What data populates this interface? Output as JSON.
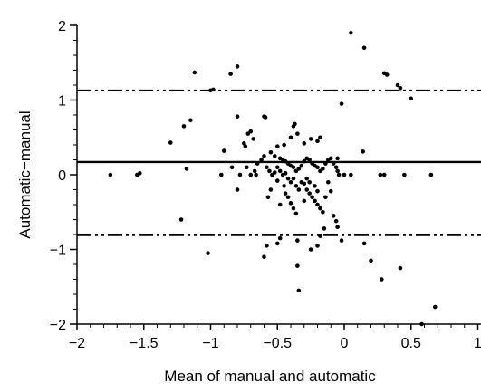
{
  "chart_data": {
    "type": "scatter",
    "title": "",
    "xlabel": "Mean of manual and automatic",
    "ylabel": "Automatic−manual",
    "xlim": [
      -2,
      1
    ],
    "ylim": [
      -2,
      2
    ],
    "x_ticks": [
      {
        "value": -2,
        "label": "−2"
      },
      {
        "value": -1.5,
        "label": "−1.5"
      },
      {
        "value": -1,
        "label": "−1"
      },
      {
        "value": -0.5,
        "label": "−0.5"
      },
      {
        "value": 0,
        "label": "0"
      },
      {
        "value": 0.5,
        "label": "0.5"
      },
      {
        "value": 1,
        "label": "1"
      }
    ],
    "y_ticks": [
      {
        "value": -2,
        "label": "−2"
      },
      {
        "value": -1,
        "label": "−1"
      },
      {
        "value": 0,
        "label": "0"
      },
      {
        "value": 1,
        "label": "1"
      },
      {
        "value": 2,
        "label": "2"
      }
    ],
    "grid": false,
    "reference_lines": [
      {
        "y": 0.17,
        "style": "solid"
      },
      {
        "y": 1.13,
        "style": "dash-dot-dot"
      },
      {
        "y": -0.81,
        "style": "dash-dot-dot"
      }
    ],
    "points": [
      [
        0.05,
        1.9
      ],
      [
        0.15,
        1.7
      ],
      [
        0.3,
        1.36
      ],
      [
        0.32,
        1.34
      ],
      [
        0.4,
        1.2
      ],
      [
        0.42,
        1.16
      ],
      [
        0.5,
        1.02
      ],
      [
        -1.12,
        1.37
      ],
      [
        -0.8,
        1.45
      ],
      [
        -0.85,
        1.35
      ],
      [
        -1.0,
        1.13
      ],
      [
        -0.98,
        1.14
      ],
      [
        -1.15,
        0.73
      ],
      [
        -1.2,
        0.65
      ],
      [
        -1.3,
        0.43
      ],
      [
        -0.8,
        0.78
      ],
      [
        -0.6,
        0.78
      ],
      [
        -0.59,
        0.77
      ],
      [
        -0.02,
        0.95
      ],
      [
        -0.37,
        0.68
      ],
      [
        -0.38,
        0.65
      ],
      [
        -0.35,
        0.55
      ],
      [
        -0.4,
        0.5
      ],
      [
        -0.7,
        0.58
      ],
      [
        -0.72,
        0.55
      ],
      [
        -0.68,
        0.48
      ],
      [
        -0.75,
        0.42
      ],
      [
        -0.74,
        0.38
      ],
      [
        -0.5,
        0.38
      ],
      [
        -0.45,
        0.4
      ],
      [
        -0.3,
        0.42
      ],
      [
        -0.25,
        0.48
      ],
      [
        -0.2,
        0.45
      ],
      [
        -0.18,
        0.5
      ],
      [
        0.14,
        0.31
      ],
      [
        -0.05,
        0.22
      ],
      [
        -0.55,
        0.3
      ],
      [
        -0.52,
        0.25
      ],
      [
        -0.48,
        0.22
      ],
      [
        -0.46,
        0.2
      ],
      [
        -0.44,
        0.18
      ],
      [
        -0.42,
        0.15
      ],
      [
        -0.4,
        0.12
      ],
      [
        -0.38,
        0.1
      ],
      [
        -0.36,
        0.05
      ],
      [
        -0.34,
        0.08
      ],
      [
        -0.32,
        0.12
      ],
      [
        -0.3,
        0.18
      ],
      [
        -0.28,
        0.22
      ],
      [
        -0.26,
        0.2
      ],
      [
        -0.24,
        0.15
      ],
      [
        -0.22,
        0.12
      ],
      [
        -0.2,
        0.1
      ],
      [
        -0.18,
        0.05
      ],
      [
        -0.16,
        0.08
      ],
      [
        -0.14,
        0.15
      ],
      [
        -0.12,
        0.2
      ],
      [
        -0.1,
        0.22
      ],
      [
        -0.08,
        0.15
      ],
      [
        -0.06,
        0.1
      ],
      [
        -0.05,
        0.05
      ],
      [
        -0.04,
        0.0
      ],
      [
        -0.5,
        0.1
      ],
      [
        -0.48,
        0.05
      ],
      [
        -0.46,
        0.0
      ],
      [
        -0.44,
        0.02
      ],
      [
        -0.6,
        0.25
      ],
      [
        -0.62,
        0.2
      ],
      [
        -0.65,
        0.15
      ],
      [
        -0.67,
        0.05
      ],
      [
        -0.7,
        0.0
      ],
      [
        -0.73,
        0.1
      ],
      [
        -0.58,
        0.1
      ],
      [
        -0.56,
        0.05
      ],
      [
        -0.54,
        0.0
      ],
      [
        -0.52,
        0.03
      ],
      [
        -0.42,
        -0.05
      ],
      [
        -0.4,
        -0.1
      ],
      [
        -0.38,
        -0.05
      ],
      [
        -0.36,
        -0.15
      ],
      [
        -0.34,
        -0.2
      ],
      [
        -0.32,
        -0.1
      ],
      [
        -0.3,
        -0.12
      ],
      [
        -0.28,
        -0.2
      ],
      [
        -0.26,
        -0.25
      ],
      [
        -0.24,
        -0.3
      ],
      [
        -0.22,
        -0.35
      ],
      [
        -0.2,
        -0.4
      ],
      [
        -0.18,
        -0.45
      ],
      [
        -0.16,
        -0.5
      ],
      [
        -0.45,
        -0.15
      ],
      [
        -0.44,
        -0.25
      ],
      [
        -0.42,
        -0.3
      ],
      [
        -0.4,
        -0.38
      ],
      [
        -0.38,
        -0.45
      ],
      [
        -0.5,
        -0.08
      ],
      [
        -0.55,
        -0.2
      ],
      [
        -0.57,
        -0.3
      ],
      [
        -0.48,
        -0.4
      ],
      [
        -0.36,
        -0.52
      ],
      [
        -0.3,
        -0.35
      ],
      [
        -0.12,
        -0.1
      ],
      [
        -0.1,
        -0.22
      ],
      [
        -0.08,
        -0.55
      ],
      [
        -0.06,
        -0.62
      ],
      [
        -0.05,
        -0.7
      ],
      [
        -0.28,
        -0.05
      ],
      [
        -0.26,
        -0.1
      ],
      [
        -0.22,
        -0.15
      ],
      [
        -0.2,
        -0.22
      ],
      [
        -0.14,
        -0.3
      ],
      [
        -0.48,
        -0.85
      ],
      [
        -0.5,
        -0.92
      ],
      [
        -0.35,
        -0.88
      ],
      [
        -0.58,
        -0.95
      ],
      [
        -0.6,
        -1.1
      ],
      [
        -0.35,
        -1.22
      ],
      [
        -0.34,
        -1.55
      ],
      [
        -0.25,
        -1.0
      ],
      [
        -0.2,
        -0.95
      ],
      [
        -0.02,
        -0.88
      ],
      [
        0.15,
        -0.92
      ],
      [
        0.2,
        -1.15
      ],
      [
        0.28,
        -1.4
      ],
      [
        0.42,
        -1.25
      ],
      [
        0.58,
        -2.0
      ],
      [
        0.68,
        -1.77
      ],
      [
        -1.22,
        -0.6
      ],
      [
        -1.02,
        -1.05
      ],
      [
        -0.9,
        0.32
      ],
      [
        -0.8,
        -0.2
      ],
      [
        -0.84,
        0.1
      ],
      [
        -1.18,
        0.08
      ],
      [
        -0.15,
        -0.72
      ],
      [
        -0.18,
        -0.82
      ],
      [
        -1.75,
        0.0
      ],
      [
        -1.55,
        0.0
      ],
      [
        -1.53,
        0.02
      ],
      [
        -0.92,
        0.0
      ],
      [
        -0.78,
        0.0
      ],
      [
        -0.66,
        0.0
      ],
      [
        0.0,
        0.0
      ],
      [
        0.05,
        0.0
      ],
      [
        0.3,
        0.0
      ],
      [
        0.45,
        0.0
      ],
      [
        0.65,
        0.0
      ],
      [
        0.27,
        0.0
      ]
    ]
  }
}
